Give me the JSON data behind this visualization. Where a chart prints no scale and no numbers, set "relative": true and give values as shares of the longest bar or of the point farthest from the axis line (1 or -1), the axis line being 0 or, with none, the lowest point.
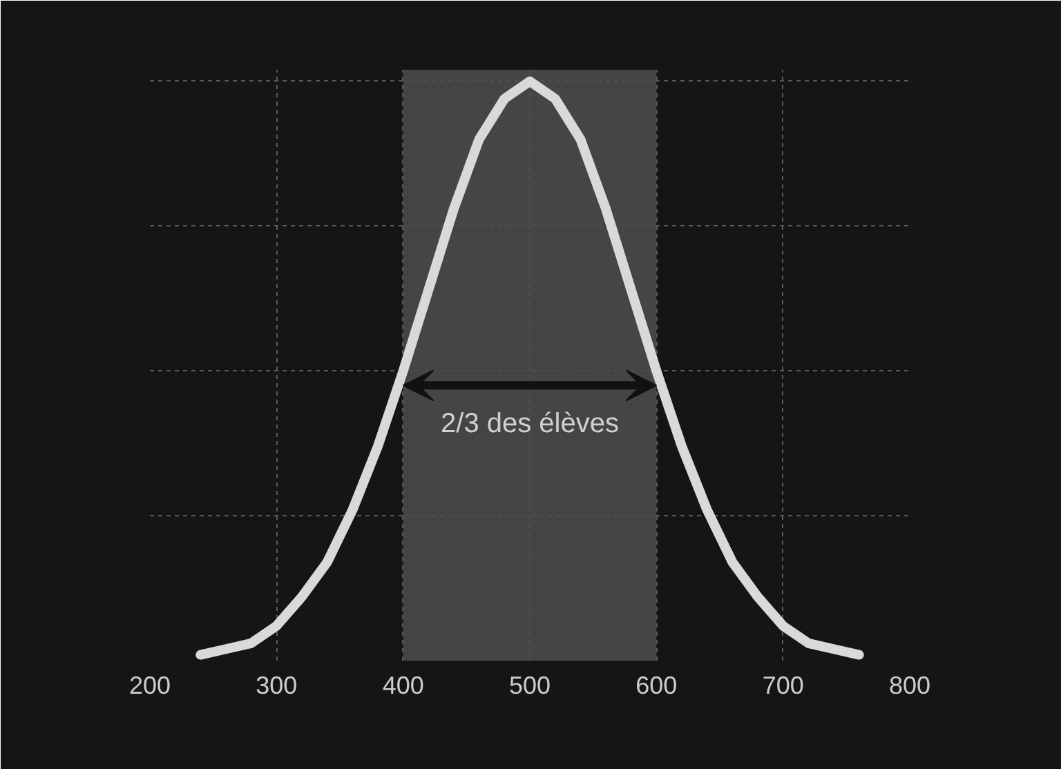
{
  "chart_data": {
    "type": "line",
    "relative": true,
    "x": [
      240,
      260,
      280,
      300,
      320,
      340,
      360,
      380,
      400,
      420,
      440,
      460,
      480,
      500,
      520,
      540,
      560,
      580,
      600,
      620,
      640,
      660,
      680,
      700,
      720,
      740,
      760
    ],
    "series": [
      {
        "color": "#d9d9d9",
        "values": [
          0.01,
          0.02,
          0.03,
          0.06,
          0.11,
          0.17,
          0.26,
          0.37,
          0.5,
          0.64,
          0.78,
          0.9,
          0.97,
          1,
          0.97,
          0.9,
          0.78,
          0.64,
          0.5,
          0.37,
          0.26,
          0.17,
          0.11,
          0.06,
          0.03,
          0.02,
          0.01
        ]
      }
    ],
    "xlim": [
      200,
      800
    ],
    "xticks": [
      200,
      300,
      400,
      500,
      600,
      700,
      800
    ],
    "grid": true,
    "line_style": "solid",
    "marker": "none",
    "bands": [
      {
        "axis": "x",
        "from": 400,
        "to": 600,
        "label": "2/3 des élèves",
        "color": "#4d4d4d"
      }
    ]
  }
}
